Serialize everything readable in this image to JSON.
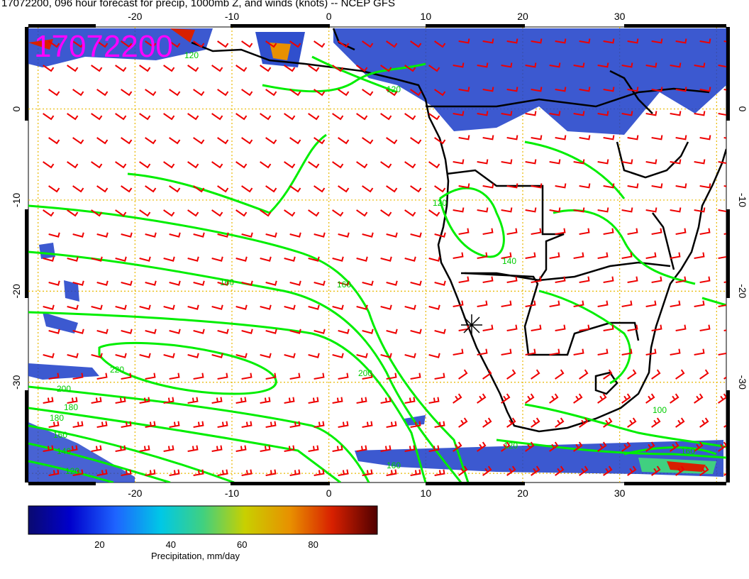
{
  "title": "17072200, 096 hour forecast for precip, 1000mb Z, and winds (knots) -- NCEP GFS",
  "stamp": "17072200",
  "lon_labels": [
    "-20",
    "-10",
    "0",
    "10",
    "20",
    "30"
  ],
  "lat_labels": [
    "0",
    "-10",
    "-20",
    "-30"
  ],
  "contour_labels": [
    "120",
    "120",
    "120",
    "140",
    "160",
    "160",
    "180",
    "200",
    "200",
    "220",
    "180",
    "160",
    "140",
    "120",
    "160",
    "120",
    "100",
    "160"
  ],
  "colorbar": {
    "label": "Precipitation, mm/day",
    "ticks": [
      "20",
      "40",
      "60",
      "80"
    ],
    "tick_values": [
      20,
      40,
      60,
      80
    ],
    "range": [
      0,
      98
    ]
  },
  "colors": {
    "contour": "#00ee00",
    "wind": "#ee0000",
    "grid": "#e8b800",
    "coast": "#000000",
    "stamp": "#ff00ff"
  },
  "extent": {
    "lon": [
      -31,
      41
    ],
    "lat": [
      -41,
      9
    ]
  }
}
